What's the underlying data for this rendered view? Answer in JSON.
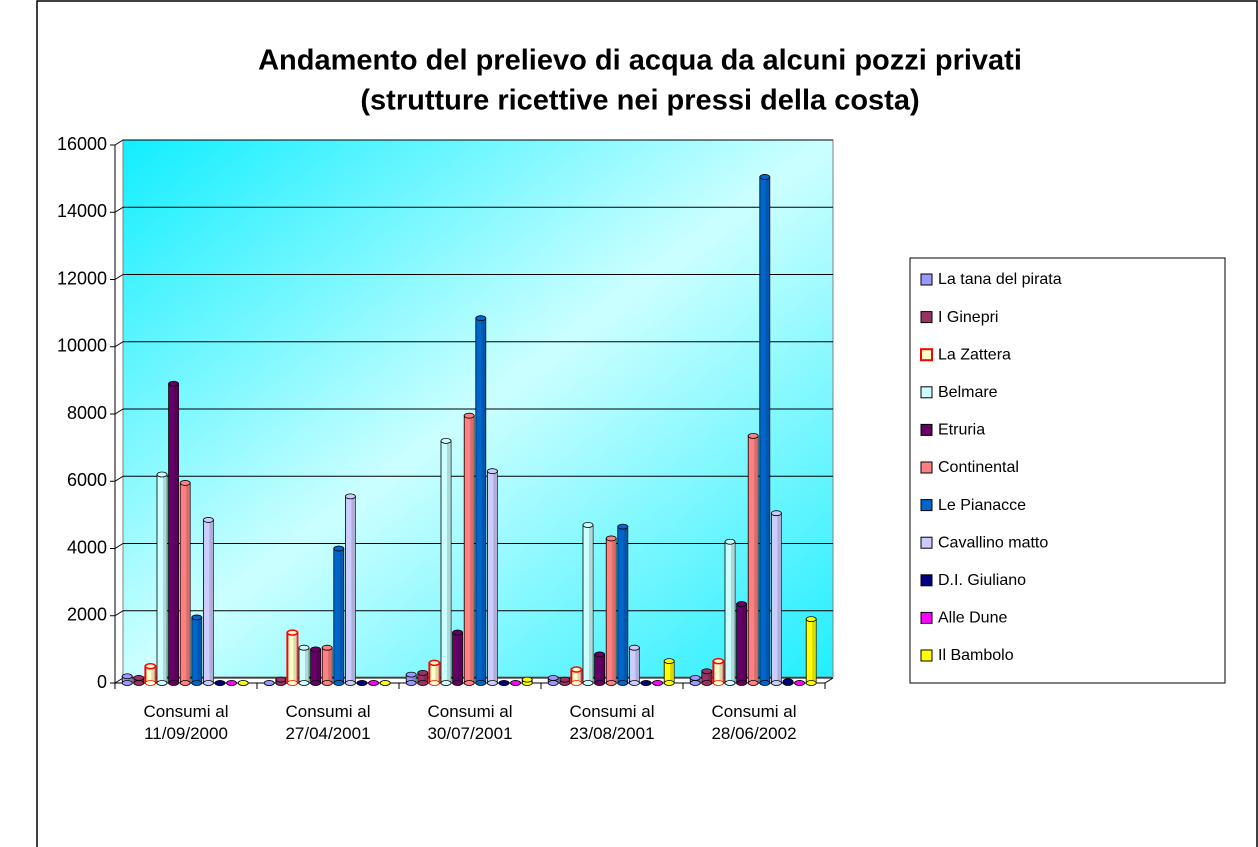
{
  "chart_data": {
    "type": "bar3d",
    "title": "Andamento del prelievo di acqua da alcuni pozzi privati",
    "subtitle": "(strutture ricettive nei pressi della costa)",
    "categories": [
      "Consumi al 11/09/2000",
      "Consumi al 27/04/2001",
      "Consumi al 30/07/2001",
      "Consumi al 23/08/2001",
      "Consumi al 28/06/2002"
    ],
    "series": [
      {
        "name": "La tana del pirata",
        "color": "#9999ff",
        "values": [
          200,
          0,
          250,
          150,
          150
        ]
      },
      {
        "name": "I Ginepri",
        "color": "#993366",
        "values": [
          150,
          100,
          300,
          100,
          350
        ]
      },
      {
        "name": "La Zattera",
        "color": "#ffffcc",
        "edgecolor": "#ff0000",
        "values": [
          500,
          1500,
          600,
          400,
          650
        ]
      },
      {
        "name": "Belmare",
        "color": "#ccffff",
        "values": [
          6200,
          1050,
          7200,
          4700,
          4200
        ]
      },
      {
        "name": "Etruria",
        "color": "#660066",
        "values": [
          8900,
          1000,
          1500,
          850,
          2350
        ]
      },
      {
        "name": "Continental",
        "color": "#ff8080",
        "values": [
          5950,
          1050,
          7950,
          4300,
          7350
        ]
      },
      {
        "name": "Le Pianacce",
        "color": "#0066cc",
        "values": [
          1950,
          4000,
          10850,
          4650,
          15050
        ]
      },
      {
        "name": "Cavallino matto",
        "color": "#ccccff",
        "values": [
          4850,
          5550,
          6300,
          1050,
          5050
        ]
      },
      {
        "name": "D.I. Giuliano",
        "color": "#000080",
        "values": [
          0,
          0,
          0,
          0,
          50
        ]
      },
      {
        "name": "Alle Dune",
        "color": "#ff00ff",
        "values": [
          0,
          0,
          0,
          0,
          0
        ]
      },
      {
        "name": "Il Bambolo",
        "color": "#ffff00",
        "values": [
          0,
          0,
          100,
          650,
          1900
        ]
      }
    ],
    "ylim": [
      0,
      16000
    ],
    "yticks": [
      0,
      2000,
      4000,
      6000,
      8000,
      10000,
      12000,
      14000,
      16000
    ],
    "grid": true,
    "legend": "right"
  }
}
